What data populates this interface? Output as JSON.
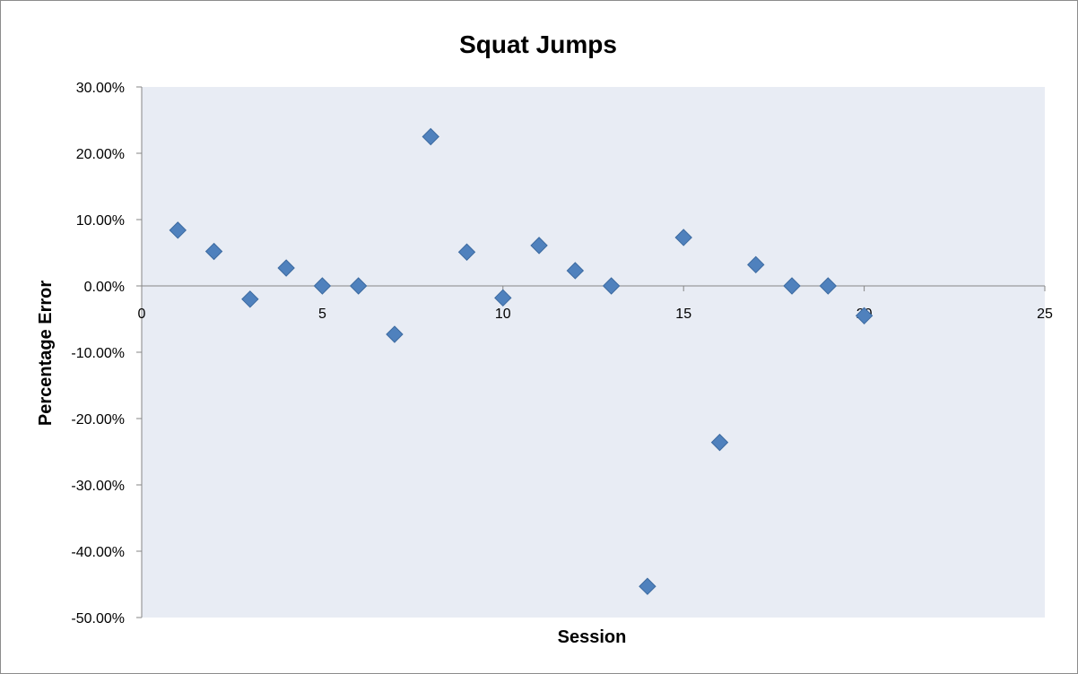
{
  "chart_data": {
    "type": "scatter",
    "title": "Squat Jumps",
    "xlabel": "Session",
    "ylabel": "Percentage Error",
    "xlim": [
      0,
      25
    ],
    "ylim": [
      -0.5,
      0.3
    ],
    "x_ticks": [
      0,
      5,
      10,
      15,
      20,
      25
    ],
    "y_ticks": [
      0.3,
      0.2,
      0.1,
      0.0,
      -0.1,
      -0.2,
      -0.3,
      -0.4,
      -0.5
    ],
    "y_tick_labels": [
      "30.00%",
      "20.00%",
      "10.00%",
      "0.00%",
      "-10.00%",
      "-20.00%",
      "-30.00%",
      "-40.00%",
      "-50.00%"
    ],
    "grid": false,
    "legend": "none",
    "colors": {
      "plot_background": "#e8ecf4",
      "marker": "#4f81bd",
      "marker_edge": "#3c6aa0",
      "axis_line": "#868686"
    },
    "marker": "diamond",
    "series": [
      {
        "x": [
          1,
          2,
          3,
          4,
          5,
          6,
          7,
          8,
          9,
          10,
          11,
          12,
          13,
          14,
          15,
          16,
          17,
          18,
          19,
          20
        ],
        "y": [
          0.084,
          0.052,
          -0.02,
          0.027,
          0.0,
          0.0,
          -0.073,
          0.225,
          0.051,
          -0.018,
          0.061,
          0.023,
          0.0,
          -0.453,
          0.073,
          -0.236,
          0.032,
          0.0,
          0.0,
          -0.045
        ]
      }
    ]
  }
}
